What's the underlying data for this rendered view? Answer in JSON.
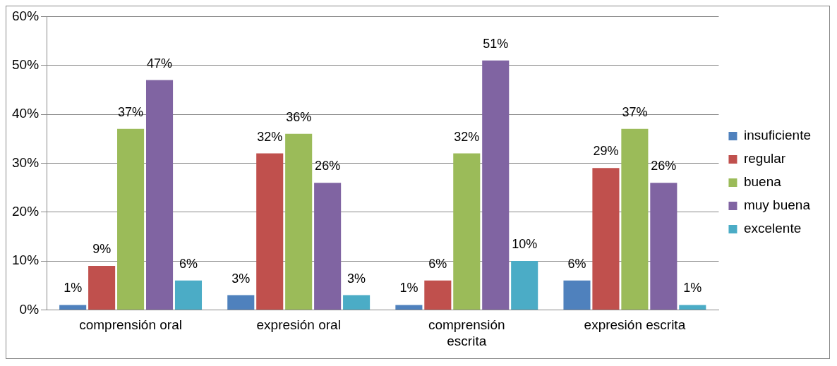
{
  "chart_data": {
    "type": "bar",
    "categories": [
      "comprensión oral",
      "expresión oral",
      "comprensión escrita",
      "expresión escrita"
    ],
    "series": [
      {
        "name": "insuficiente",
        "color": "#4f81bd",
        "values": [
          1,
          3,
          1,
          6
        ],
        "value_labels": [
          "1%",
          "3%",
          "1%",
          "6%"
        ]
      },
      {
        "name": "regular",
        "color": "#c0504d",
        "values": [
          9,
          32,
          6,
          29
        ],
        "value_labels": [
          "9%",
          "32%",
          "6%",
          "29%"
        ]
      },
      {
        "name": "buena",
        "color": "#9bbb59",
        "values": [
          37,
          36,
          32,
          37
        ],
        "value_labels": [
          "37%",
          "36%",
          "32%",
          "37%"
        ]
      },
      {
        "name": "muy buena",
        "color": "#8064a2",
        "values": [
          47,
          26,
          51,
          26
        ],
        "value_labels": [
          "47%",
          "26%",
          "51%",
          "26%"
        ]
      },
      {
        "name": "excelente",
        "color": "#4bacc6",
        "values": [
          6,
          3,
          10,
          1
        ],
        "value_labels": [
          "6%",
          "3%",
          "10%",
          "1%"
        ]
      }
    ],
    "ylim": [
      0,
      60
    ],
    "yticks": [
      {
        "value": 0,
        "label": "0%"
      },
      {
        "value": 10,
        "label": "10%"
      },
      {
        "value": 20,
        "label": "20%"
      },
      {
        "value": 30,
        "label": "30%"
      },
      {
        "value": 40,
        "label": "40%"
      },
      {
        "value": 50,
        "label": "50%"
      },
      {
        "value": 60,
        "label": "60%"
      }
    ],
    "grid": "y",
    "legend": "right"
  }
}
